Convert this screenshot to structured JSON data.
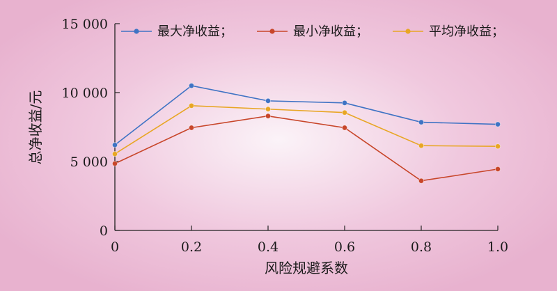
{
  "chart_data": {
    "type": "line",
    "x": [
      0,
      0.2,
      0.4,
      0.6,
      0.8,
      1.0
    ],
    "x_tick_labels": [
      "0",
      "0.2",
      "0.4",
      "0.6",
      "0.8",
      "1.0"
    ],
    "y_ticks": [
      0,
      5000,
      10000,
      15000
    ],
    "y_tick_labels": [
      "0",
      "5 000",
      "10 000",
      "15 000"
    ],
    "xlim": [
      0,
      1.0
    ],
    "ylim": [
      0,
      15000
    ],
    "xlabel": "风险规避系数",
    "ylabel": "总净收益/元",
    "grid": false,
    "legend_position": "top",
    "series": [
      {
        "name": "最大净收益；",
        "color": "#3f73c4",
        "values": [
          6200,
          10500,
          9400,
          9250,
          7850,
          7700
        ]
      },
      {
        "name": "最小净收益；",
        "color": "#c8462a",
        "values": [
          4850,
          7450,
          8300,
          7450,
          3600,
          4450
        ]
      },
      {
        "name": "平均净收益；",
        "color": "#e8a624",
        "values": [
          5550,
          9050,
          8800,
          8550,
          6150,
          6100
        ]
      }
    ]
  }
}
